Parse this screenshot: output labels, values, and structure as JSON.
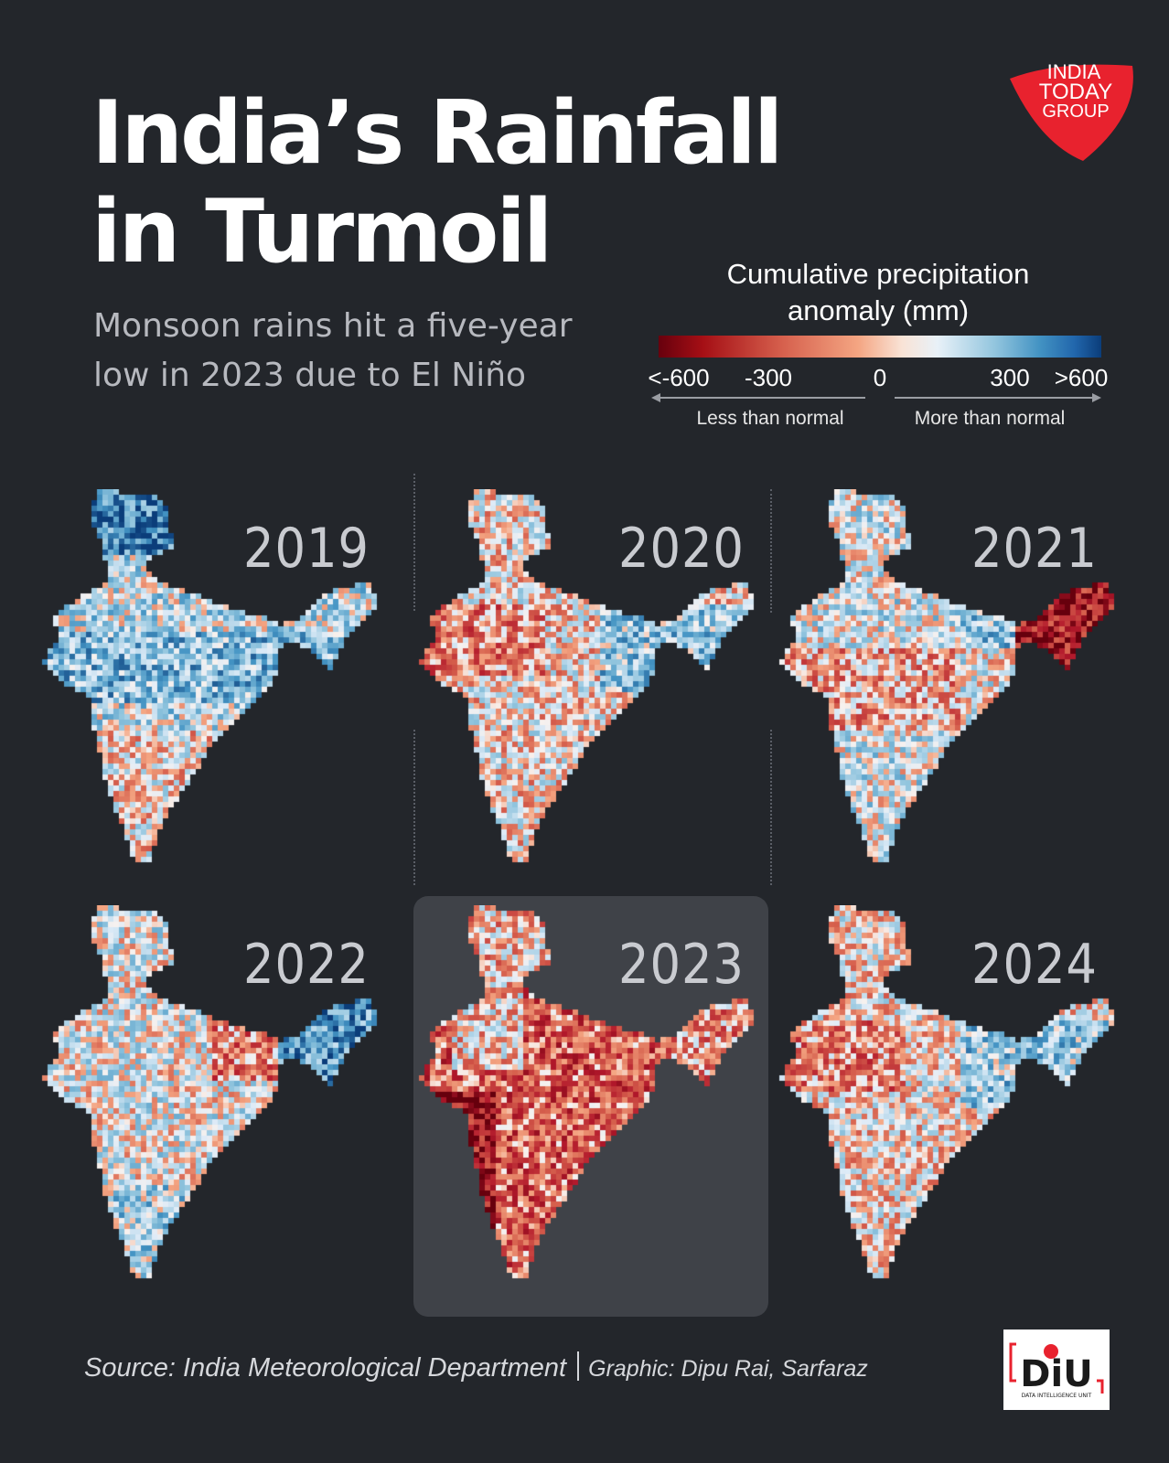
{
  "header": {
    "title_line1": "India’s Rainfall",
    "title_line2": "in Turmoil",
    "subtitle_line1": "Monsoon rains hit a five-year",
    "subtitle_line2": "low in 2023 due to El Niño"
  },
  "brand_logo": {
    "text_line1": "INDIA",
    "text_line2": "TODAY",
    "text_line3": "GROUP",
    "color": "#e8222e"
  },
  "legend": {
    "title_line1": "Cumulative precipitation",
    "title_line2": "anomaly (mm)",
    "ticks": [
      "<-600",
      "-300",
      "0",
      "300",
      ">600"
    ],
    "less_label": "Less than normal",
    "more_label": "More than normal",
    "colors": [
      "#67000d",
      "#d6604d",
      "#f7f7f7",
      "#4393c3",
      "#0b3d7a"
    ]
  },
  "maps": [
    {
      "year": "2019",
      "pattern": "wet",
      "highlighted": false
    },
    {
      "year": "2020",
      "pattern": "mixed",
      "highlighted": false
    },
    {
      "year": "2021",
      "pattern": "mixed-dry-northeast",
      "highlighted": false
    },
    {
      "year": "2022",
      "pattern": "mixed-wet-northeast",
      "highlighted": false
    },
    {
      "year": "2023",
      "pattern": "dry",
      "highlighted": true
    },
    {
      "year": "2024",
      "pattern": "mixed",
      "highlighted": false
    }
  ],
  "footer": {
    "source": "Source:  India Meteorological Department",
    "credit": "Graphic: Dipu Rai, Sarfaraz",
    "diu_logo_text": "DiU",
    "diu_logo_subtext": "DATA INTELLIGENCE UNIT"
  }
}
